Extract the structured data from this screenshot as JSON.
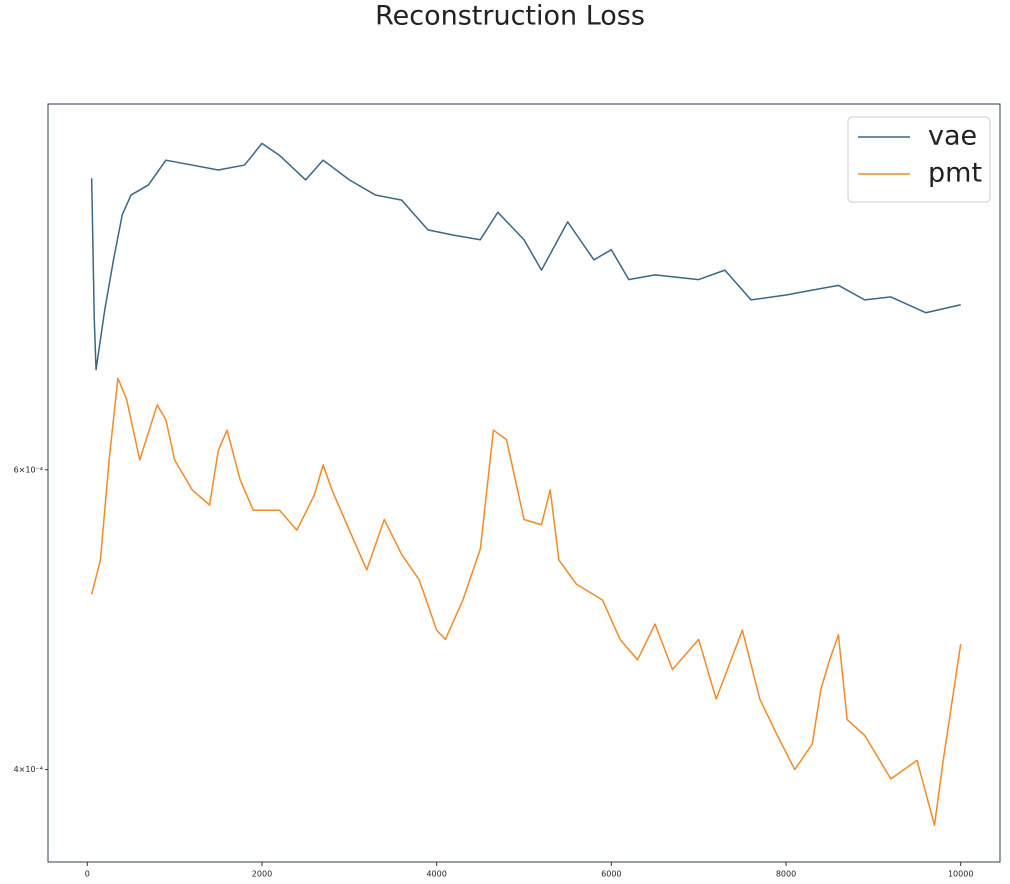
{
  "chart_data": {
    "type": "line",
    "title": "Reconstruction Loss",
    "xlim": [
      -450,
      10450
    ],
    "xticks": [
      0,
      2000,
      4000,
      6000,
      8000,
      10000
    ],
    "ylim": [
      0.000353,
      0.000984
    ],
    "yscale": "log",
    "yticks": [
      {
        "value": 0.0004,
        "label": "4×10⁻⁴"
      },
      {
        "value": 0.0006,
        "label": "6×10⁻⁴"
      }
    ],
    "grid": false,
    "legend": "upper right",
    "series": [
      {
        "name": "vae",
        "color": "#3b6684",
        "x": [
          50,
          80,
          100,
          200,
          300,
          400,
          500,
          700,
          900,
          1200,
          1500,
          1800,
          2000,
          2200,
          2500,
          2700,
          3000,
          3300,
          3600,
          3900,
          4200,
          4500,
          4700,
          5000,
          5200,
          5500,
          5800,
          6000,
          6200,
          6500,
          7000,
          7300,
          7600,
          8000,
          8300,
          8600,
          8900,
          9200,
          9600,
          10000
        ],
        "values": [
          0.00089,
          0.000735,
          0.000687,
          0.000745,
          0.000797,
          0.000847,
          0.00087,
          0.000882,
          0.000912,
          0.000906,
          0.0009,
          0.000906,
          0.000933,
          0.000918,
          0.000888,
          0.000912,
          0.000888,
          0.00087,
          0.000864,
          0.00083,
          0.000824,
          0.000819,
          0.00085,
          0.000819,
          0.000786,
          0.000839,
          0.000797,
          0.000808,
          0.000776,
          0.000781,
          0.000776,
          0.000786,
          0.000755,
          0.00076,
          0.000765,
          0.00077,
          0.000755,
          0.000758,
          0.000742,
          0.00075
        ]
      },
      {
        "name": "pmt",
        "color": "#f28a26",
        "x": [
          50,
          150,
          250,
          350,
          450,
          600,
          800,
          900,
          1000,
          1200,
          1400,
          1500,
          1600,
          1750,
          1900,
          2200,
          2400,
          2600,
          2700,
          2800,
          3000,
          3200,
          3400,
          3600,
          3800,
          4000,
          4100,
          4300,
          4500,
          4650,
          4800,
          5000,
          5200,
          5300,
          5400,
          5600,
          5900,
          6100,
          6300,
          6500,
          6700,
          7000,
          7200,
          7500,
          7700,
          7900,
          8100,
          8300,
          8400,
          8500,
          8600,
          8700,
          8900,
          9200,
          9500,
          9700,
          9800,
          10000
        ],
        "values": [
          0.000507,
          0.000531,
          0.000608,
          0.000679,
          0.00066,
          0.000608,
          0.000655,
          0.000642,
          0.000608,
          0.000584,
          0.000572,
          0.000616,
          0.000633,
          0.000592,
          0.000568,
          0.000568,
          0.000553,
          0.00058,
          0.000604,
          0.000584,
          0.000553,
          0.000524,
          0.000561,
          0.000535,
          0.000517,
          0.000483,
          0.000477,
          0.000503,
          0.000539,
          0.000633,
          0.000625,
          0.000561,
          0.000557,
          0.000584,
          0.000531,
          0.000514,
          0.000503,
          0.000477,
          0.000464,
          0.000487,
          0.000458,
          0.000477,
          0.00044,
          0.000483,
          0.00044,
          0.000419,
          0.0004,
          0.000414,
          0.000446,
          0.000464,
          0.00048,
          0.000428,
          0.000419,
          0.000395,
          0.000405,
          0.000371,
          0.000405,
          0.000474
        ]
      }
    ]
  }
}
